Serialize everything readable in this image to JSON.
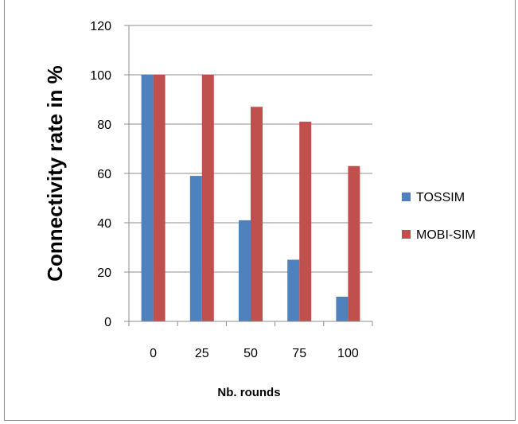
{
  "chart_data": {
    "type": "bar",
    "categories": [
      "0",
      "25",
      "50",
      "75",
      "100"
    ],
    "series": [
      {
        "name": "TOSSIM",
        "values": [
          100,
          59,
          41,
          25,
          10
        ],
        "color": "#4f81bd"
      },
      {
        "name": "MOBI-SIM",
        "values": [
          100,
          100,
          87,
          81,
          63
        ],
        "color": "#c0504d"
      }
    ],
    "xlabel": "Nb. rounds",
    "ylabel": "Connectivity rate in %",
    "ylim": [
      0,
      120
    ],
    "yticks": [
      "0",
      "20",
      "40",
      "60",
      "80",
      "100",
      "120"
    ],
    "grid": true,
    "legend_position": "right"
  }
}
